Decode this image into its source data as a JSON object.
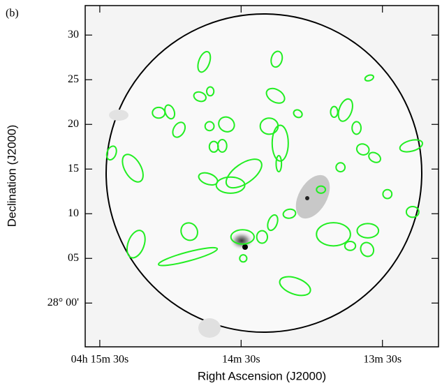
{
  "chart_data": {
    "type": "ellipse-map",
    "panel_label": "(b)",
    "xlabel": "Right Ascension (J2000)",
    "ylabel": "Declination (J2000)",
    "xlim": [
      216.2,
      66.2
    ],
    "ylim": [
      -4.9,
      33.3
    ],
    "xticks": [
      {
        "value": 210,
        "label": "04h 15m 30s"
      },
      {
        "value": 150,
        "label": "14m 30s"
      },
      {
        "value": 90,
        "label": "13m 30s"
      }
    ],
    "yticks": [
      {
        "value": 0,
        "label": "28° 00'"
      },
      {
        "value": 5,
        "label": "05"
      },
      10,
      15,
      20,
      25,
      30
    ],
    "ellipses": {
      "color": "#22ee22",
      "x": [
        165.7,
        134.9,
        135.4,
        95.6,
        167.5,
        163.1,
        185.0,
        180.3,
        176.4,
        163.4,
        156.2,
        138.1,
        133.4,
        125.9,
        110.5,
        105.7,
        101.0,
        205.0,
        196.0,
        161.6,
        158.0,
        164.0,
        148.8,
        154.5,
        134.0,
        107.8,
        98.3,
        93.3,
        77.8,
        116.1,
        87.9,
        129.5,
        77.2,
        172.0,
        194.6,
        172.6,
        149.4,
        136.6,
        141.1,
        110.8,
        96.2,
        103.7,
        96.5,
        149.1,
        127.1
      ],
      "y": [
        27.0,
        27.3,
        23.2,
        25.2,
        23.1,
        23.7,
        21.3,
        21.4,
        19.4,
        19.8,
        20.0,
        19.8,
        17.9,
        21.2,
        21.4,
        21.6,
        19.6,
        16.8,
        15.1,
        17.5,
        17.6,
        13.9,
        14.5,
        13.2,
        15.6,
        15.2,
        17.2,
        16.3,
        17.6,
        12.7,
        12.2,
        10.0,
        10.2,
        8.0,
        6.6,
        5.2,
        7.4,
        9.0,
        7.4,
        7.7,
        8.1,
        6.4,
        6.0,
        5.0,
        1.9
      ],
      "rx": [
        0.6,
        0.6,
        1.1,
        0.5,
        0.7,
        0.4,
        0.7,
        0.5,
        0.6,
        0.5,
        0.9,
        1.0,
        0.9,
        0.5,
        0.4,
        0.7,
        0.5,
        0.5,
        0.9,
        0.5,
        0.5,
        1.1,
        2.3,
        1.6,
        0.3,
        0.5,
        0.7,
        0.7,
        1.3,
        0.5,
        0.5,
        0.7,
        0.7,
        0.9,
        0.9,
        3.4,
        1.3,
        0.5,
        0.6,
        1.9,
        1.2,
        0.6,
        0.7,
        0.4,
        1.8
      ],
      "ry": [
        1.2,
        0.9,
        0.7,
        0.3,
        0.5,
        0.5,
        0.6,
        0.8,
        0.9,
        0.5,
        0.8,
        0.9,
        2.0,
        0.4,
        0.6,
        1.3,
        0.7,
        0.8,
        1.7,
        0.6,
        0.7,
        0.6,
        1.1,
        0.9,
        0.9,
        0.5,
        0.6,
        0.5,
        0.6,
        0.4,
        0.5,
        0.5,
        0.6,
        1.0,
        1.6,
        0.5,
        0.8,
        0.9,
        0.7,
        1.3,
        0.8,
        0.5,
        0.8,
        0.4,
        0.9
      ],
      "angle": [
        20,
        15,
        30,
        -20,
        20,
        0,
        0,
        -20,
        30,
        0,
        30,
        0,
        0,
        30,
        0,
        20,
        0,
        20,
        -30,
        0,
        0,
        20,
        -35,
        0,
        0,
        0,
        20,
        30,
        -15,
        0,
        0,
        -10,
        0,
        -30,
        20,
        -15,
        0,
        20,
        0,
        0,
        0,
        0,
        -30,
        0,
        20
      ]
    }
  }
}
